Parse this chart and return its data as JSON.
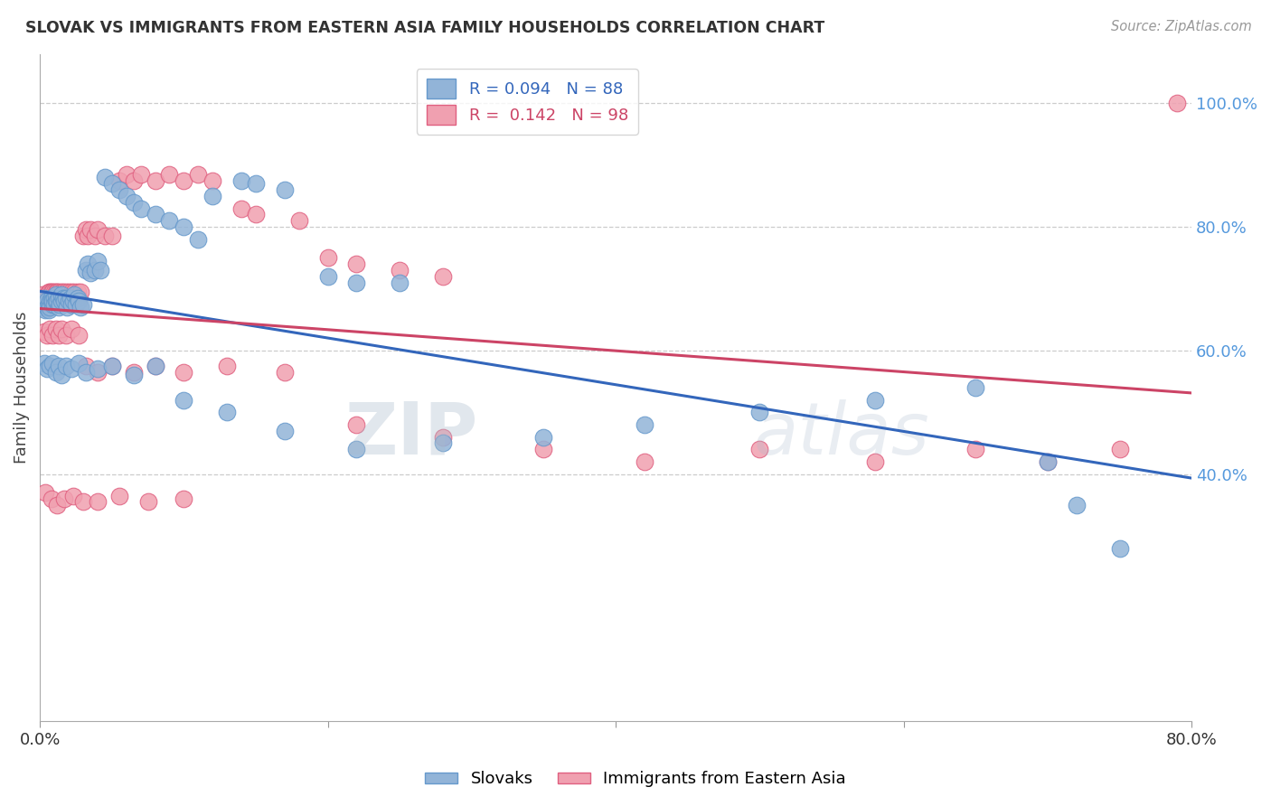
{
  "title": "SLOVAK VS IMMIGRANTS FROM EASTERN ASIA FAMILY HOUSEHOLDS CORRELATION CHART",
  "source": "Source: ZipAtlas.com",
  "ylabel": "Family Households",
  "right_ytick_labels": [
    "100.0%",
    "80.0%",
    "60.0%",
    "40.0%"
  ],
  "right_ytick_values": [
    1.0,
    0.8,
    0.6,
    0.4
  ],
  "xlim": [
    0.0,
    0.8
  ],
  "ylim": [
    0.0,
    1.08
  ],
  "blue_label": "Slovaks",
  "pink_label": "Immigrants from Eastern Asia",
  "blue_R": 0.094,
  "blue_N": 88,
  "pink_R": 0.142,
  "pink_N": 98,
  "blue_color": "#92B4D8",
  "pink_color": "#F0A0B0",
  "blue_edge_color": "#6699CC",
  "pink_edge_color": "#E06080",
  "blue_line_color": "#3366BB",
  "pink_line_color": "#CC4466",
  "background_color": "#ffffff",
  "grid_color": "#cccccc",
  "right_axis_color": "#5599DD",
  "title_color": "#333333",
  "watermark_color": "#C8D8E8",
  "blue_x": [
    0.002,
    0.003,
    0.004,
    0.005,
    0.005,
    0.006,
    0.006,
    0.007,
    0.007,
    0.008,
    0.008,
    0.009,
    0.009,
    0.01,
    0.01,
    0.011,
    0.011,
    0.012,
    0.013,
    0.013,
    0.014,
    0.015,
    0.015,
    0.016,
    0.017,
    0.018,
    0.019,
    0.02,
    0.021,
    0.022,
    0.023,
    0.024,
    0.025,
    0.026,
    0.027,
    0.028,
    0.03,
    0.032,
    0.033,
    0.035,
    0.038,
    0.04,
    0.042,
    0.045,
    0.05,
    0.055,
    0.06,
    0.065,
    0.07,
    0.08,
    0.09,
    0.1,
    0.11,
    0.12,
    0.14,
    0.15,
    0.17,
    0.2,
    0.22,
    0.25,
    0.003,
    0.005,
    0.007,
    0.009,
    0.011,
    0.013,
    0.015,
    0.018,
    0.022,
    0.027,
    0.032,
    0.04,
    0.05,
    0.065,
    0.08,
    0.1,
    0.13,
    0.17,
    0.22,
    0.28,
    0.35,
    0.42,
    0.5,
    0.58,
    0.65,
    0.7,
    0.72,
    0.75
  ],
  "blue_y": [
    0.67,
    0.685,
    0.665,
    0.68,
    0.67,
    0.675,
    0.665,
    0.68,
    0.67,
    0.685,
    0.68,
    0.675,
    0.68,
    0.685,
    0.675,
    0.68,
    0.69,
    0.68,
    0.67,
    0.685,
    0.675,
    0.68,
    0.69,
    0.685,
    0.68,
    0.685,
    0.67,
    0.68,
    0.685,
    0.675,
    0.68,
    0.69,
    0.675,
    0.685,
    0.68,
    0.67,
    0.675,
    0.73,
    0.74,
    0.725,
    0.73,
    0.745,
    0.73,
    0.88,
    0.87,
    0.86,
    0.85,
    0.84,
    0.83,
    0.82,
    0.81,
    0.8,
    0.78,
    0.85,
    0.875,
    0.87,
    0.86,
    0.72,
    0.71,
    0.71,
    0.58,
    0.57,
    0.575,
    0.58,
    0.565,
    0.575,
    0.56,
    0.575,
    0.57,
    0.58,
    0.565,
    0.57,
    0.575,
    0.56,
    0.575,
    0.52,
    0.5,
    0.47,
    0.44,
    0.45,
    0.46,
    0.48,
    0.5,
    0.52,
    0.54,
    0.42,
    0.35,
    0.28
  ],
  "pink_x": [
    0.002,
    0.003,
    0.004,
    0.005,
    0.005,
    0.006,
    0.006,
    0.007,
    0.007,
    0.008,
    0.008,
    0.009,
    0.009,
    0.01,
    0.01,
    0.011,
    0.011,
    0.012,
    0.013,
    0.013,
    0.014,
    0.015,
    0.015,
    0.016,
    0.017,
    0.018,
    0.019,
    0.02,
    0.021,
    0.022,
    0.023,
    0.024,
    0.025,
    0.026,
    0.027,
    0.028,
    0.03,
    0.032,
    0.033,
    0.035,
    0.038,
    0.04,
    0.045,
    0.05,
    0.055,
    0.06,
    0.065,
    0.07,
    0.08,
    0.09,
    0.1,
    0.11,
    0.12,
    0.14,
    0.15,
    0.18,
    0.2,
    0.22,
    0.25,
    0.28,
    0.003,
    0.005,
    0.007,
    0.009,
    0.011,
    0.013,
    0.015,
    0.018,
    0.022,
    0.027,
    0.032,
    0.04,
    0.05,
    0.065,
    0.08,
    0.1,
    0.13,
    0.17,
    0.22,
    0.28,
    0.35,
    0.42,
    0.5,
    0.58,
    0.65,
    0.7,
    0.75,
    0.79,
    0.004,
    0.008,
    0.012,
    0.017,
    0.023,
    0.03,
    0.04,
    0.055,
    0.075,
    0.1
  ],
  "pink_y": [
    0.69,
    0.685,
    0.675,
    0.69,
    0.68,
    0.695,
    0.685,
    0.695,
    0.685,
    0.695,
    0.685,
    0.695,
    0.685,
    0.695,
    0.685,
    0.695,
    0.685,
    0.695,
    0.685,
    0.695,
    0.685,
    0.695,
    0.685,
    0.695,
    0.685,
    0.695,
    0.685,
    0.695,
    0.685,
    0.695,
    0.685,
    0.695,
    0.685,
    0.695,
    0.685,
    0.695,
    0.785,
    0.795,
    0.785,
    0.795,
    0.785,
    0.795,
    0.785,
    0.785,
    0.875,
    0.885,
    0.875,
    0.885,
    0.875,
    0.885,
    0.875,
    0.885,
    0.875,
    0.83,
    0.82,
    0.81,
    0.75,
    0.74,
    0.73,
    0.72,
    0.63,
    0.625,
    0.635,
    0.625,
    0.635,
    0.625,
    0.635,
    0.625,
    0.635,
    0.625,
    0.575,
    0.565,
    0.575,
    0.565,
    0.575,
    0.565,
    0.575,
    0.565,
    0.48,
    0.46,
    0.44,
    0.42,
    0.44,
    0.42,
    0.44,
    0.42,
    0.44,
    1.0,
    0.37,
    0.36,
    0.35,
    0.36,
    0.365,
    0.355,
    0.355,
    0.365,
    0.355,
    0.36
  ]
}
